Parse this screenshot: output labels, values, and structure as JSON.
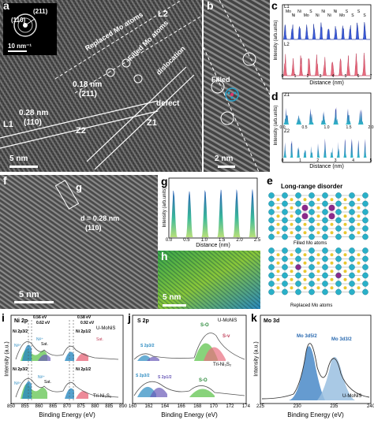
{
  "panels": {
    "a": {
      "letter": "a",
      "fft_label_211": "(211)",
      "fft_label_110": "(110)",
      "fft_scale": "10 nm⁻¹",
      "label_replaced": "Replaced Mo atoms",
      "label_filled": "Filled Mo atoms",
      "label_dislocation": "dislocation",
      "label_L2": "L2",
      "label_L1": "L1",
      "label_Z1": "Z1",
      "label_Z2": "Z2",
      "label_d1": "0.18 nm",
      "label_d1_plane": "(211)",
      "label_d2": "0.28 nm",
      "label_d2_plane": "(110)",
      "label_defect": "defect",
      "scale": "5 nm"
    },
    "b": {
      "letter": "b",
      "label_filled": "Filled",
      "scale": "2 nm"
    },
    "c": {
      "letter": "c",
      "series1": "L1",
      "series2": "L2",
      "atoms_top": [
        "Mo",
        "Ni",
        "Ni",
        "Mo",
        "S",
        "Ni",
        "Ni",
        "Ni",
        "Ni",
        "Mo",
        "S",
        "S",
        "S",
        "S"
      ],
      "ylabel": "Intensity (arb.units)",
      "xlabel": "Distance (nm)",
      "ticks": [
        "0",
        "1",
        "2",
        "3",
        "4",
        "5",
        "6",
        "7"
      ],
      "ticks2": [
        "0",
        "1",
        "2",
        "3",
        "4",
        "5",
        "6"
      ]
    },
    "d": {
      "letter": "d",
      "series1": "Z1",
      "series2": "Z2",
      "ylabel": "Intensity (arb.units)",
      "xlabel": "Distance (nm)",
      "ticks1": [
        "0.0",
        "0.5",
        "1.0",
        "1.5",
        "2.0"
      ],
      "ticks2": [
        "0",
        "1",
        "2",
        "3",
        "4",
        "5"
      ]
    },
    "e": {
      "letter": "e",
      "title": "Long-range disorder",
      "caption1": "Filled Mo atoms",
      "caption2": "Replaced Mo atoms"
    },
    "f": {
      "letter": "f",
      "label_g": "g",
      "label_d": "d = 0.28 nm",
      "label_plane": "(110)",
      "scale": "5 nm"
    },
    "g": {
      "letter": "g",
      "ylabel": "Intensity (arb.units)",
      "xlabel": "Distance (nm)",
      "ticks": [
        "0.0",
        "0.5",
        "1.0",
        "1.5",
        "2.0",
        "2.5"
      ]
    },
    "h": {
      "letter": "h",
      "scale": "5 nm"
    },
    "i": {
      "letter": "i",
      "title": "Ni 2p",
      "sample_top": "U-MoNiS",
      "sample_bottom": "Tri-Ni₃S₂",
      "shift1a": "0.56 eV",
      "shift1b": "0.62 eV",
      "shift2a": "0.58 eV",
      "shift2b": "0.92 eV",
      "peak_ni2p32": "Ni 2p3/2",
      "peak_ni2p12": "Ni 2p1/2",
      "ni3": "Ni³⁺",
      "ni2": "Ni²⁺",
      "sat": "Sat.",
      "ylabel": "Intensity (a.u.)",
      "xlabel": "Binding Energy (eV)",
      "ticks": [
        "850",
        "855",
        "860",
        "865",
        "870",
        "875",
        "880",
        "885",
        "890"
      ]
    },
    "j": {
      "letter": "j",
      "title": "S 2p",
      "sample_top": "U-MoNiS",
      "sample_bottom": "Tri-Ni₃S₂",
      "s2p32": "S 2p3/2",
      "s2p12": "S 2p1/2",
      "so": "S-O",
      "sv": "S-v",
      "xlabel": "Binding Energy (eV)",
      "ticks": [
        "160",
        "162",
        "164",
        "166",
        "168",
        "170",
        "172",
        "174"
      ]
    },
    "k": {
      "letter": "k",
      "title": "Mo 3d",
      "mo52": "Mo 3d5/2",
      "mo32": "Mo 3d3/2",
      "sample": "U-MoNiS",
      "ylabel": "Intensity (a.u.)",
      "xlabel": "Binding Energy (eV)",
      "ticks": [
        "225",
        "230",
        "235",
        "240"
      ]
    }
  }
}
